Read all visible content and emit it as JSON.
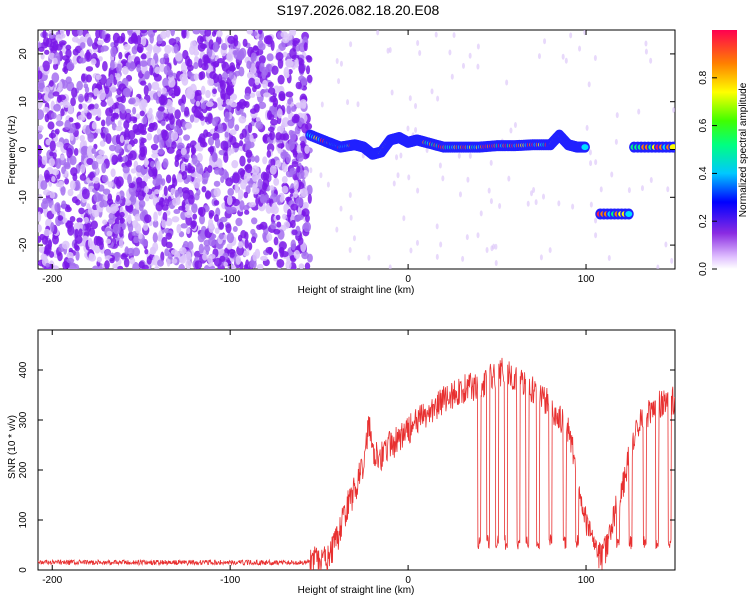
{
  "title": "S197.2026.082.18.20.E08",
  "chart_data": [
    {
      "type": "heatmap",
      "xlabel": "Height of straight line (km)",
      "ylabel": "Frequency (Hz)",
      "xlim": [
        -208,
        150
      ],
      "ylim": [
        -25,
        25
      ],
      "xticks": [
        -200,
        -100,
        0,
        100
      ],
      "yticks": [
        -20,
        -10,
        0,
        10,
        20
      ],
      "colorbar": {
        "label": "Normalized spectral amplitude",
        "range": [
          0,
          1
        ],
        "ticks": [
          0.0,
          0.2,
          0.4,
          0.6,
          0.8
        ],
        "tick_labels": [
          "0.0",
          "0.2",
          "0.4",
          "0.6",
          "0.8"
        ]
      },
      "noise_region_x": [
        -208,
        -55
      ],
      "tone_track": {
        "x": [
          -55,
          -45,
          -38,
          -30,
          -25,
          -20,
          -15,
          -10,
          -5,
          0,
          5,
          10,
          20,
          30,
          40,
          50,
          60,
          70,
          80,
          85,
          90,
          95,
          100
        ],
        "freq": [
          3,
          1.5,
          0.5,
          1,
          0.5,
          -1,
          -0.5,
          2,
          2.5,
          1.5,
          2,
          1.5,
          0.5,
          0.5,
          0.5,
          0.8,
          0.8,
          1,
          1,
          3,
          1,
          0.5,
          0.5
        ]
      },
      "tone_segments": [
        {
          "x": [
            108,
            125
          ],
          "freq": -13.5
        },
        {
          "x": [
            127,
            150
          ],
          "freq": 0.5
        }
      ]
    },
    {
      "type": "line",
      "xlabel": "Height of straight line (km)",
      "ylabel": "SNR (10 * v/v)",
      "xlim": [
        -208,
        150
      ],
      "ylim": [
        0,
        480
      ],
      "xticks": [
        -200,
        -100,
        0,
        100
      ],
      "yticks": [
        0,
        100,
        200,
        300,
        400
      ],
      "line_color": "#e83030",
      "series": [
        {
          "x": [
            -208,
            -180,
            -150,
            -120,
            -90,
            -60,
            -45,
            -40,
            -35,
            -30,
            -25,
            -22,
            -20,
            -15,
            -10,
            -5,
            0,
            10,
            20,
            30,
            40,
            50,
            55,
            60,
            70,
            80,
            90,
            95,
            100,
            105,
            110,
            115,
            120,
            125,
            130,
            140,
            150
          ],
          "y": [
            15,
            15,
            15,
            15,
            15,
            15,
            20,
            60,
            120,
            160,
            210,
            300,
            240,
            230,
            250,
            260,
            280,
            310,
            340,
            360,
            370,
            390,
            400,
            380,
            360,
            330,
            280,
            200,
            100,
            40,
            20,
            100,
            160,
            240,
            300,
            330,
            340
          ]
        }
      ],
      "dropouts_x": [
        40,
        45,
        50,
        55,
        62,
        67,
        73,
        80,
        88,
        95,
        105,
        110,
        118,
        125,
        133,
        140,
        147
      ]
    }
  ]
}
